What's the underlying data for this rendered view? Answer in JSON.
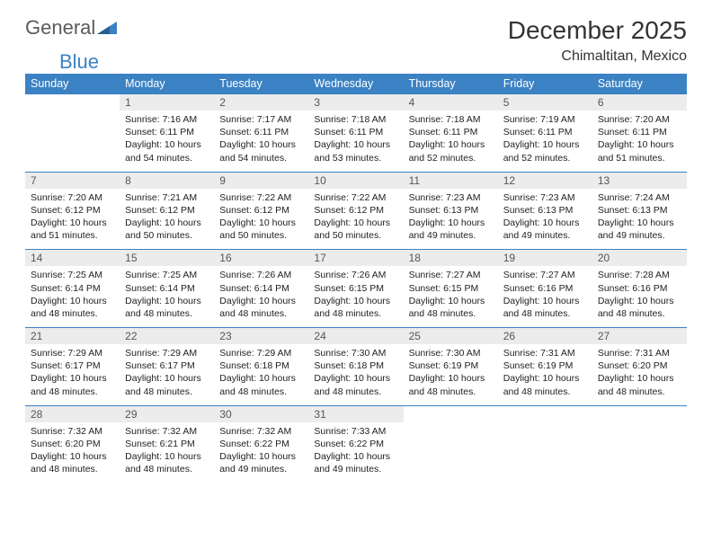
{
  "logo": {
    "part1": "General",
    "part2": "Blue"
  },
  "title": "December 2025",
  "location": "Chimaltitan, Mexico",
  "dayHeaders": [
    "Sunday",
    "Monday",
    "Tuesday",
    "Wednesday",
    "Thursday",
    "Friday",
    "Saturday"
  ],
  "colors": {
    "headerBg": "#3b82c4",
    "headerText": "#ffffff",
    "dayNumBg": "#ececec",
    "dayNumText": "#555555",
    "borderColor": "#3b82c4",
    "logoGray": "#5b5b5b",
    "logoBlue": "#3b82c4"
  },
  "weeks": [
    [
      {
        "n": "",
        "sr": "",
        "ss": "",
        "dl": "",
        "empty": true
      },
      {
        "n": "1",
        "sr": "Sunrise: 7:16 AM",
        "ss": "Sunset: 6:11 PM",
        "dl": "Daylight: 10 hours and 54 minutes."
      },
      {
        "n": "2",
        "sr": "Sunrise: 7:17 AM",
        "ss": "Sunset: 6:11 PM",
        "dl": "Daylight: 10 hours and 54 minutes."
      },
      {
        "n": "3",
        "sr": "Sunrise: 7:18 AM",
        "ss": "Sunset: 6:11 PM",
        "dl": "Daylight: 10 hours and 53 minutes."
      },
      {
        "n": "4",
        "sr": "Sunrise: 7:18 AM",
        "ss": "Sunset: 6:11 PM",
        "dl": "Daylight: 10 hours and 52 minutes."
      },
      {
        "n": "5",
        "sr": "Sunrise: 7:19 AM",
        "ss": "Sunset: 6:11 PM",
        "dl": "Daylight: 10 hours and 52 minutes."
      },
      {
        "n": "6",
        "sr": "Sunrise: 7:20 AM",
        "ss": "Sunset: 6:11 PM",
        "dl": "Daylight: 10 hours and 51 minutes."
      }
    ],
    [
      {
        "n": "7",
        "sr": "Sunrise: 7:20 AM",
        "ss": "Sunset: 6:12 PM",
        "dl": "Daylight: 10 hours and 51 minutes."
      },
      {
        "n": "8",
        "sr": "Sunrise: 7:21 AM",
        "ss": "Sunset: 6:12 PM",
        "dl": "Daylight: 10 hours and 50 minutes."
      },
      {
        "n": "9",
        "sr": "Sunrise: 7:22 AM",
        "ss": "Sunset: 6:12 PM",
        "dl": "Daylight: 10 hours and 50 minutes."
      },
      {
        "n": "10",
        "sr": "Sunrise: 7:22 AM",
        "ss": "Sunset: 6:12 PM",
        "dl": "Daylight: 10 hours and 50 minutes."
      },
      {
        "n": "11",
        "sr": "Sunrise: 7:23 AM",
        "ss": "Sunset: 6:13 PM",
        "dl": "Daylight: 10 hours and 49 minutes."
      },
      {
        "n": "12",
        "sr": "Sunrise: 7:23 AM",
        "ss": "Sunset: 6:13 PM",
        "dl": "Daylight: 10 hours and 49 minutes."
      },
      {
        "n": "13",
        "sr": "Sunrise: 7:24 AM",
        "ss": "Sunset: 6:13 PM",
        "dl": "Daylight: 10 hours and 49 minutes."
      }
    ],
    [
      {
        "n": "14",
        "sr": "Sunrise: 7:25 AM",
        "ss": "Sunset: 6:14 PM",
        "dl": "Daylight: 10 hours and 48 minutes."
      },
      {
        "n": "15",
        "sr": "Sunrise: 7:25 AM",
        "ss": "Sunset: 6:14 PM",
        "dl": "Daylight: 10 hours and 48 minutes."
      },
      {
        "n": "16",
        "sr": "Sunrise: 7:26 AM",
        "ss": "Sunset: 6:14 PM",
        "dl": "Daylight: 10 hours and 48 minutes."
      },
      {
        "n": "17",
        "sr": "Sunrise: 7:26 AM",
        "ss": "Sunset: 6:15 PM",
        "dl": "Daylight: 10 hours and 48 minutes."
      },
      {
        "n": "18",
        "sr": "Sunrise: 7:27 AM",
        "ss": "Sunset: 6:15 PM",
        "dl": "Daylight: 10 hours and 48 minutes."
      },
      {
        "n": "19",
        "sr": "Sunrise: 7:27 AM",
        "ss": "Sunset: 6:16 PM",
        "dl": "Daylight: 10 hours and 48 minutes."
      },
      {
        "n": "20",
        "sr": "Sunrise: 7:28 AM",
        "ss": "Sunset: 6:16 PM",
        "dl": "Daylight: 10 hours and 48 minutes."
      }
    ],
    [
      {
        "n": "21",
        "sr": "Sunrise: 7:29 AM",
        "ss": "Sunset: 6:17 PM",
        "dl": "Daylight: 10 hours and 48 minutes."
      },
      {
        "n": "22",
        "sr": "Sunrise: 7:29 AM",
        "ss": "Sunset: 6:17 PM",
        "dl": "Daylight: 10 hours and 48 minutes."
      },
      {
        "n": "23",
        "sr": "Sunrise: 7:29 AM",
        "ss": "Sunset: 6:18 PM",
        "dl": "Daylight: 10 hours and 48 minutes."
      },
      {
        "n": "24",
        "sr": "Sunrise: 7:30 AM",
        "ss": "Sunset: 6:18 PM",
        "dl": "Daylight: 10 hours and 48 minutes."
      },
      {
        "n": "25",
        "sr": "Sunrise: 7:30 AM",
        "ss": "Sunset: 6:19 PM",
        "dl": "Daylight: 10 hours and 48 minutes."
      },
      {
        "n": "26",
        "sr": "Sunrise: 7:31 AM",
        "ss": "Sunset: 6:19 PM",
        "dl": "Daylight: 10 hours and 48 minutes."
      },
      {
        "n": "27",
        "sr": "Sunrise: 7:31 AM",
        "ss": "Sunset: 6:20 PM",
        "dl": "Daylight: 10 hours and 48 minutes."
      }
    ],
    [
      {
        "n": "28",
        "sr": "Sunrise: 7:32 AM",
        "ss": "Sunset: 6:20 PM",
        "dl": "Daylight: 10 hours and 48 minutes."
      },
      {
        "n": "29",
        "sr": "Sunrise: 7:32 AM",
        "ss": "Sunset: 6:21 PM",
        "dl": "Daylight: 10 hours and 48 minutes."
      },
      {
        "n": "30",
        "sr": "Sunrise: 7:32 AM",
        "ss": "Sunset: 6:22 PM",
        "dl": "Daylight: 10 hours and 49 minutes."
      },
      {
        "n": "31",
        "sr": "Sunrise: 7:33 AM",
        "ss": "Sunset: 6:22 PM",
        "dl": "Daylight: 10 hours and 49 minutes."
      },
      {
        "n": "",
        "sr": "",
        "ss": "",
        "dl": "",
        "empty": true
      },
      {
        "n": "",
        "sr": "",
        "ss": "",
        "dl": "",
        "empty": true
      },
      {
        "n": "",
        "sr": "",
        "ss": "",
        "dl": "",
        "empty": true
      }
    ]
  ]
}
